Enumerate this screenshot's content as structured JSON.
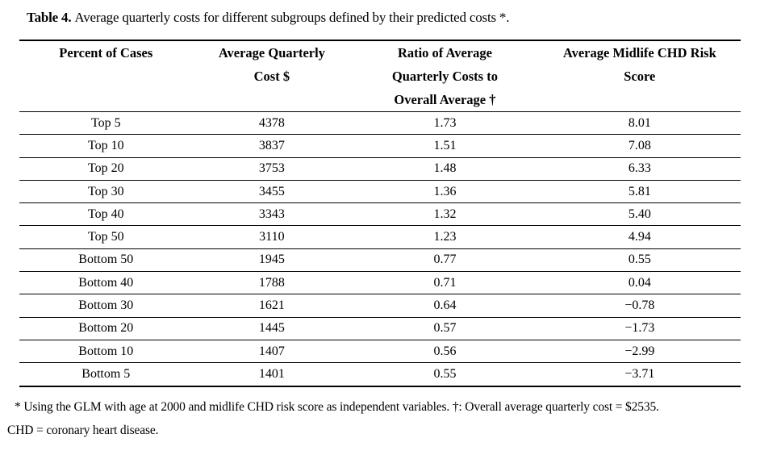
{
  "title": {
    "label": "Table 4.",
    "text": "Average quarterly costs for different subgroups defined by their predicted costs *."
  },
  "table": {
    "columns": [
      {
        "id": "percent-of-cases",
        "lines": [
          "Percent of Cases"
        ]
      },
      {
        "id": "average-quarterly-cost",
        "lines": [
          "Average Quarterly",
          "Cost $"
        ]
      },
      {
        "id": "ratio-to-overall-average",
        "lines": [
          "Ratio of Average",
          "Quarterly Costs to",
          "Overall Average †"
        ]
      },
      {
        "id": "average-midlife-chd-risk-score",
        "lines": [
          "Average Midlife CHD Risk",
          "Score"
        ]
      }
    ],
    "rows": [
      [
        "Top 5",
        "4378",
        "1.73",
        "8.01"
      ],
      [
        "Top 10",
        "3837",
        "1.51",
        "7.08"
      ],
      [
        "Top 20",
        "3753",
        "1.48",
        "6.33"
      ],
      [
        "Top 30",
        "3455",
        "1.36",
        "5.81"
      ],
      [
        "Top 40",
        "3343",
        "1.32",
        "5.40"
      ],
      [
        "Top 50",
        "3110",
        "1.23",
        "4.94"
      ],
      [
        "Bottom 50",
        "1945",
        "0.77",
        "0.55"
      ],
      [
        "Bottom 40",
        "1788",
        "0.71",
        "0.04"
      ],
      [
        "Bottom 30",
        "1621",
        "0.64",
        "−0.78"
      ],
      [
        "Bottom 20",
        "1445",
        "0.57",
        "−1.73"
      ],
      [
        "Bottom 10",
        "1407",
        "0.56",
        "−2.99"
      ],
      [
        "Bottom 5",
        "1401",
        "0.55",
        "−3.71"
      ]
    ]
  },
  "footnote": {
    "line1": "* Using the GLM with age at 2000 and midlife CHD risk score as independent variables. †: Overall average quarterly cost = $2535.",
    "line2": "CHD = coronary heart disease."
  }
}
